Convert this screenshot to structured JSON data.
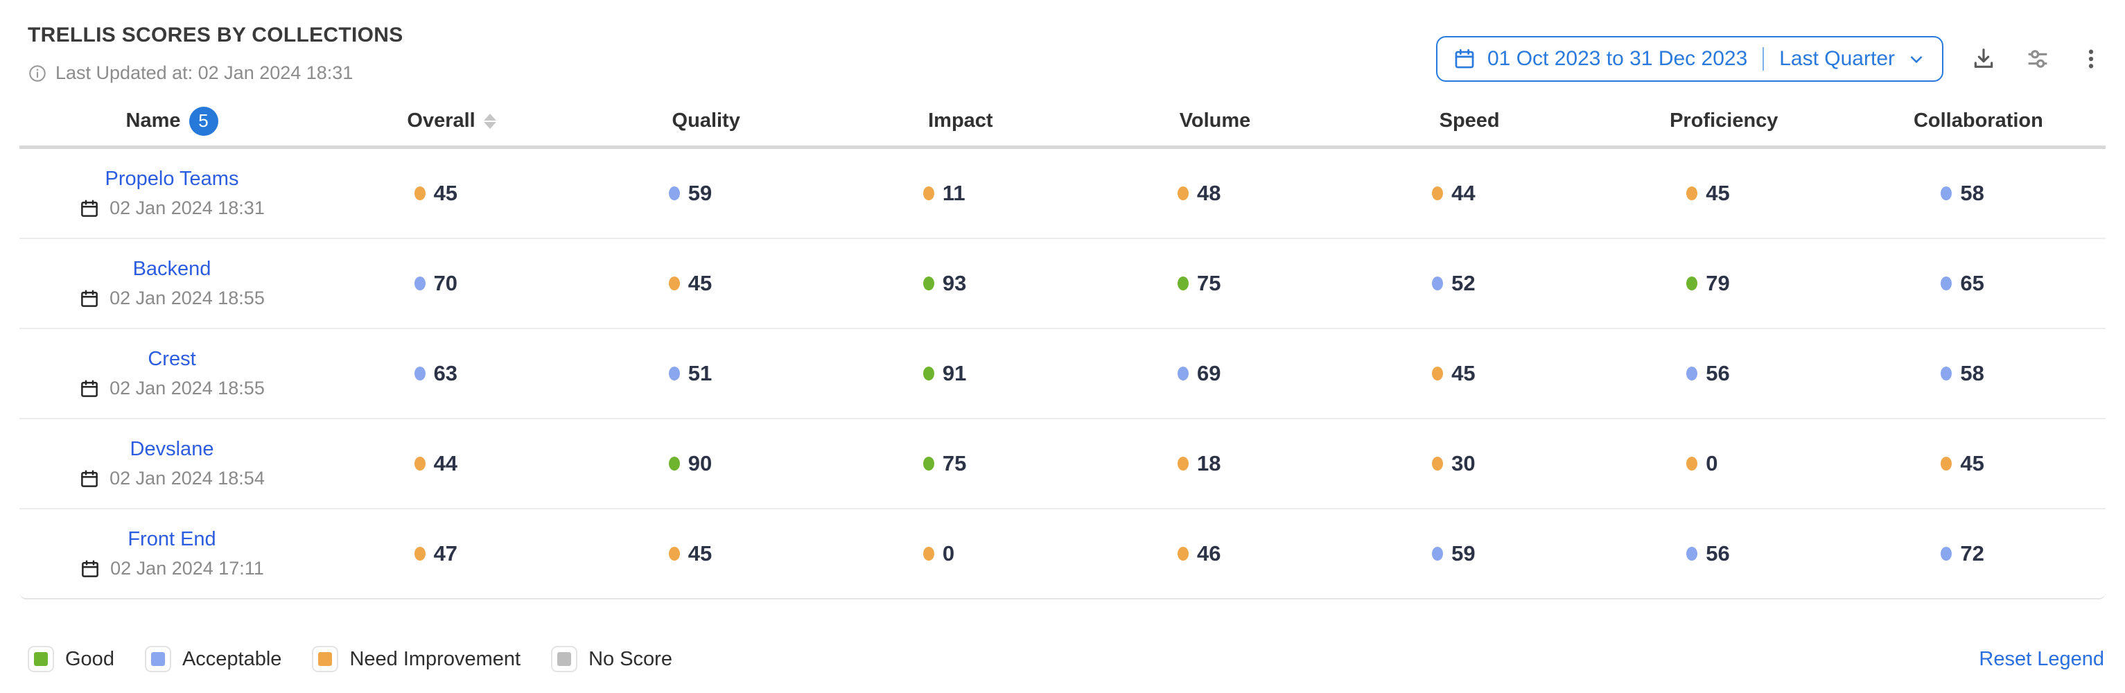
{
  "header": {
    "title": "TRELLIS SCORES BY COLLECTIONS",
    "last_updated": "Last Updated at: 02 Jan 2024 18:31",
    "date_range": {
      "range": "01 Oct 2023 to 31 Dec 2023",
      "preset": "Last Quarter"
    },
    "icons": [
      "calendar-icon",
      "chevron-down-icon",
      "download-icon",
      "sliders-icon",
      "kebab-menu-icon",
      "info-icon"
    ]
  },
  "colors": {
    "good": "#6fb42f",
    "acceptable": "#8aa6ee",
    "need_improvement": "#f0a74a",
    "no_score": "#bdbdbd",
    "link_blue": "#2c5ce0",
    "control_blue": "#2a7ade",
    "badge_blue": "#2678d9"
  },
  "table": {
    "columns": [
      "Name",
      "Overall",
      "Quality",
      "Impact",
      "Volume",
      "Speed",
      "Proficiency",
      "Collaboration"
    ],
    "name_badge_count": "5",
    "rows": [
      {
        "name": "Propelo Teams",
        "date": "02 Jan 2024 18:31",
        "scores": [
          {
            "value": 45,
            "status": "need_improvement"
          },
          {
            "value": 59,
            "status": "acceptable"
          },
          {
            "value": 11,
            "status": "need_improvement"
          },
          {
            "value": 48,
            "status": "need_improvement"
          },
          {
            "value": 44,
            "status": "need_improvement"
          },
          {
            "value": 45,
            "status": "need_improvement"
          },
          {
            "value": 58,
            "status": "acceptable"
          }
        ]
      },
      {
        "name": "Backend",
        "date": "02 Jan 2024 18:55",
        "scores": [
          {
            "value": 70,
            "status": "acceptable"
          },
          {
            "value": 45,
            "status": "need_improvement"
          },
          {
            "value": 93,
            "status": "good"
          },
          {
            "value": 75,
            "status": "good"
          },
          {
            "value": 52,
            "status": "acceptable"
          },
          {
            "value": 79,
            "status": "good"
          },
          {
            "value": 65,
            "status": "acceptable"
          }
        ]
      },
      {
        "name": "Crest",
        "date": "02 Jan 2024 18:55",
        "scores": [
          {
            "value": 63,
            "status": "acceptable"
          },
          {
            "value": 51,
            "status": "acceptable"
          },
          {
            "value": 91,
            "status": "good"
          },
          {
            "value": 69,
            "status": "acceptable"
          },
          {
            "value": 45,
            "status": "need_improvement"
          },
          {
            "value": 56,
            "status": "acceptable"
          },
          {
            "value": 58,
            "status": "acceptable"
          }
        ]
      },
      {
        "name": "Devslane",
        "date": "02 Jan 2024 18:54",
        "scores": [
          {
            "value": 44,
            "status": "need_improvement"
          },
          {
            "value": 90,
            "status": "good"
          },
          {
            "value": 75,
            "status": "good"
          },
          {
            "value": 18,
            "status": "need_improvement"
          },
          {
            "value": 30,
            "status": "need_improvement"
          },
          {
            "value": 0,
            "status": "need_improvement"
          },
          {
            "value": 45,
            "status": "need_improvement"
          }
        ]
      },
      {
        "name": "Front End",
        "date": "02 Jan 2024 17:11",
        "scores": [
          {
            "value": 47,
            "status": "need_improvement"
          },
          {
            "value": 45,
            "status": "need_improvement"
          },
          {
            "value": 0,
            "status": "need_improvement"
          },
          {
            "value": 46,
            "status": "need_improvement"
          },
          {
            "value": 59,
            "status": "acceptable"
          },
          {
            "value": 56,
            "status": "acceptable"
          },
          {
            "value": 72,
            "status": "acceptable"
          }
        ]
      }
    ]
  },
  "legend": {
    "items": [
      {
        "label": "Good",
        "status": "good"
      },
      {
        "label": "Acceptable",
        "status": "acceptable"
      },
      {
        "label": "Need Improvement",
        "status": "need_improvement"
      },
      {
        "label": "No Score",
        "status": "no_score"
      }
    ],
    "reset_label": "Reset Legend"
  }
}
